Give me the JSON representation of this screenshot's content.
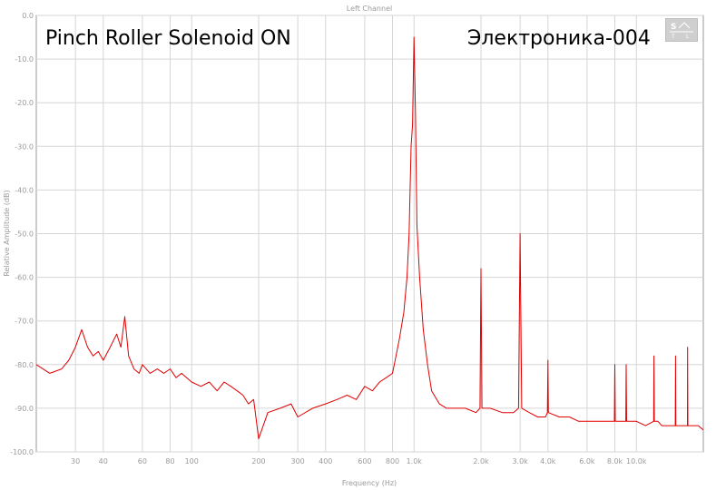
{
  "chart_data": {
    "type": "line",
    "title": "Left Channel",
    "xlabel": "Frequency (Hz)",
    "ylabel": "Relative Amplitude (dB)",
    "xscale": "log",
    "xlim": [
      20,
      20000
    ],
    "ylim": [
      -100,
      0
    ],
    "grid": true,
    "line_color": "#e00000",
    "x_tick_values": [
      30,
      40,
      60,
      80,
      100,
      200,
      300,
      400,
      600,
      800,
      1000,
      2000,
      3000,
      4000,
      6000,
      8000,
      10000
    ],
    "x_tick_labels": [
      "30",
      "40",
      "60",
      "80",
      "100",
      "200",
      "300",
      "400",
      "600",
      "800",
      "1.0k",
      "2.0k",
      "3.0k",
      "4.0k",
      "6.0k",
      "8.0k",
      "10.0k"
    ],
    "y_tick_values": [
      0,
      -10,
      -20,
      -30,
      -40,
      -50,
      -60,
      -70,
      -80,
      -90,
      -100
    ],
    "y_tick_labels": [
      "0.0",
      "-10.0",
      "-20.0",
      "-30.0",
      "-40.0",
      "-50.0",
      "-60.0",
      "-70.0",
      "-80.0",
      "-90.0",
      "-100.0"
    ],
    "series": [
      {
        "x": [
          20,
          23,
          26,
          28,
          30,
          32,
          34,
          36,
          38,
          40,
          43,
          46,
          48,
          50,
          52,
          55,
          58,
          60,
          65,
          70,
          75,
          80,
          85,
          90,
          100,
          110,
          120,
          130,
          140,
          150,
          160,
          170,
          180,
          190,
          200,
          220,
          250,
          280,
          300,
          350,
          400,
          450,
          500,
          550,
          600,
          650,
          700,
          750,
          800,
          830,
          860,
          900,
          930,
          950,
          970,
          985,
          1000,
          1015,
          1030,
          1060,
          1100,
          1150,
          1200,
          1300,
          1400,
          1500,
          1700,
          1900,
          1980,
          2000,
          2020,
          2200,
          2500,
          2800,
          2950,
          3000,
          3050,
          3300,
          3600,
          3900,
          3980,
          4000,
          4020,
          4500,
          5000,
          5500,
          6000,
          6500,
          7000,
          7500,
          7960,
          8000,
          8040,
          8500,
          8960,
          9000,
          9040,
          9500,
          10000,
          11000,
          11960,
          12000,
          12040,
          12500,
          13000,
          14000,
          14960,
          15000,
          15040,
          16000,
          16960,
          17000,
          17040,
          18000,
          19000,
          20000
        ],
        "y": [
          -80,
          -82,
          -81,
          -79,
          -76,
          -72,
          -76,
          -78,
          -77,
          -79,
          -76,
          -73,
          -76,
          -69,
          -78,
          -81,
          -82,
          -80,
          -82,
          -81,
          -82,
          -81,
          -83,
          -82,
          -84,
          -85,
          -84,
          -86,
          -84,
          -85,
          -86,
          -87,
          -89,
          -88,
          -97,
          -91,
          -90,
          -89,
          -92,
          -90,
          -89,
          -88,
          -87,
          -88,
          -85,
          -86,
          -84,
          -83,
          -82,
          -78,
          -74,
          -68,
          -60,
          -50,
          -30,
          -25,
          -5,
          -22,
          -48,
          -60,
          -72,
          -80,
          -86,
          -89,
          -90,
          -90,
          -90,
          -91,
          -90,
          -58,
          -90,
          -90,
          -91,
          -91,
          -90,
          -50,
          -90,
          -91,
          -92,
          -92,
          -91,
          -79,
          -91,
          -92,
          -92,
          -93,
          -93,
          -93,
          -93,
          -93,
          -93,
          -80,
          -93,
          -93,
          -93,
          -80,
          -93,
          -93,
          -93,
          -94,
          -93,
          -78,
          -93,
          -93,
          -94,
          -94,
          -94,
          -78,
          -94,
          -94,
          -94,
          -76,
          -94,
          -94,
          -94,
          -95
        ]
      }
    ],
    "annotations": [
      "Pinch Roller Solenoid ON",
      "Электроника-004"
    ]
  }
}
